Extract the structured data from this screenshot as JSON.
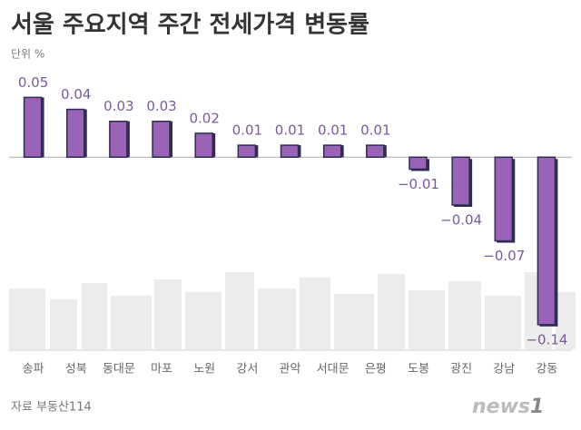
{
  "chart_data": {
    "type": "bar",
    "title": "서울 주요지역 주간 전세가격 변동률",
    "unit_label": "단위 %",
    "source": "자료 부동산114",
    "logo": {
      "word": "news",
      "number": "1"
    },
    "categories": [
      "송파",
      "성북",
      "동대문",
      "마포",
      "노원",
      "강서",
      "관악",
      "서대문",
      "은평",
      "도봉",
      "광진",
      "강남",
      "강동"
    ],
    "values": [
      0.05,
      0.04,
      0.03,
      0.03,
      0.02,
      0.01,
      0.01,
      0.01,
      0.01,
      -0.01,
      -0.04,
      -0.07,
      -0.14
    ],
    "value_labels": [
      "0.05",
      "0.04",
      "0.03",
      "0.03",
      "0.02",
      "0.01",
      "0.01",
      "0.01",
      "0.01",
      "−0.01",
      "−0.04",
      "−0.07",
      "−0.14"
    ],
    "color": "#9a63b8",
    "ylim": [
      -0.15,
      0.07
    ]
  }
}
